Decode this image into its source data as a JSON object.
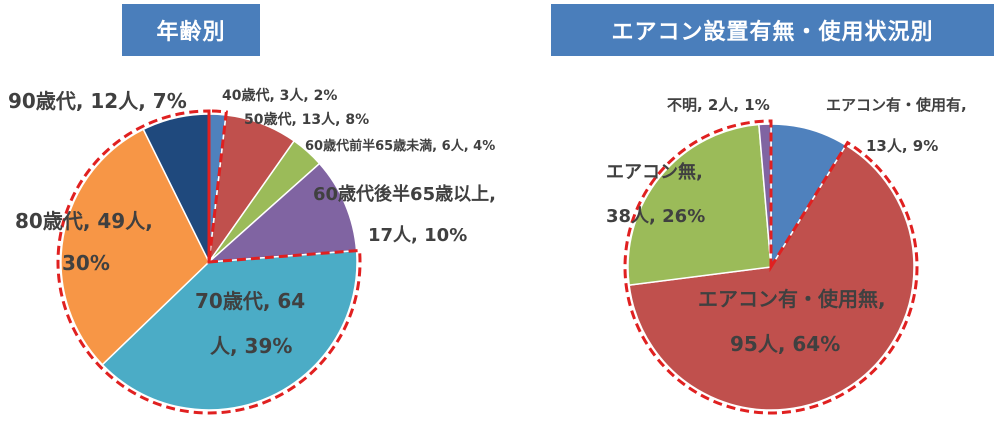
{
  "chart_data": [
    {
      "type": "pie",
      "title": "年齢別",
      "slices": [
        {
          "label": "40歳代",
          "count": "3人",
          "percent": "2%",
          "value": 3,
          "color": "#4f81bd"
        },
        {
          "label": "50歳代",
          "count": "13人",
          "percent": "8%",
          "value": 13,
          "color": "#c0504d"
        },
        {
          "label": "60歳代前半65歳未満",
          "count": "6人",
          "percent": "4%",
          "value": 6,
          "color": "#9bbb59"
        },
        {
          "label": "60歳代後半65歳以上",
          "count": "17人",
          "percent": "10%",
          "value": 17,
          "color": "#8064a2"
        },
        {
          "label": "70歳代",
          "count": "64人",
          "percent": "39%",
          "value": 64,
          "color": "#4bacc6"
        },
        {
          "label": "80歳代",
          "count": "49人",
          "percent": "30%",
          "value": 49,
          "color": "#f79646"
        },
        {
          "label": "90歳代",
          "count": "12人",
          "percent": "7%",
          "value": 12,
          "color": "#1f497d"
        }
      ],
      "labels": {
        "s40": "40歳代, 3人, 2%",
        "s50": "50歳代, 13人, 8%",
        "s60a": "60歳代前半65歳未満, 6人, 4%",
        "s60b_1": "60歳代後半65歳以上,",
        "s60b_2": "17人, 10%",
        "s70_1": "70歳代, 64",
        "s70_2": "人, 39%",
        "s80_1": "80歳代, 49人,",
        "s80_2": "30%",
        "s90": "90歳代, 12人, 7%"
      },
      "highlight_outline": "#e02020"
    },
    {
      "type": "pie",
      "title": "エアコン設置有無・使用状況別",
      "slices": [
        {
          "label": "エアコン有・使用有",
          "count": "13人",
          "percent": "9%",
          "value": 13,
          "color": "#4f81bd"
        },
        {
          "label": "エアコン有・使用無",
          "count": "95人",
          "percent": "64%",
          "value": 95,
          "color": "#c0504d"
        },
        {
          "label": "エアコン無",
          "count": "38人",
          "percent": "26%",
          "value": 38,
          "color": "#9bbb59"
        },
        {
          "label": "不明",
          "count": "2人",
          "percent": "1%",
          "value": 2,
          "color": "#8064a2"
        }
      ],
      "labels": {
        "use_1": "エアコン有・使用有,",
        "use_2": "13人, 9%",
        "nouse_1": "エアコン有・使用無,",
        "nouse_2": "95人, 64%",
        "none_1": "エアコン無,",
        "none_2": "38人, 26%",
        "unknown": "不明, 2人, 1%"
      },
      "highlight_outline": "#e02020"
    }
  ]
}
